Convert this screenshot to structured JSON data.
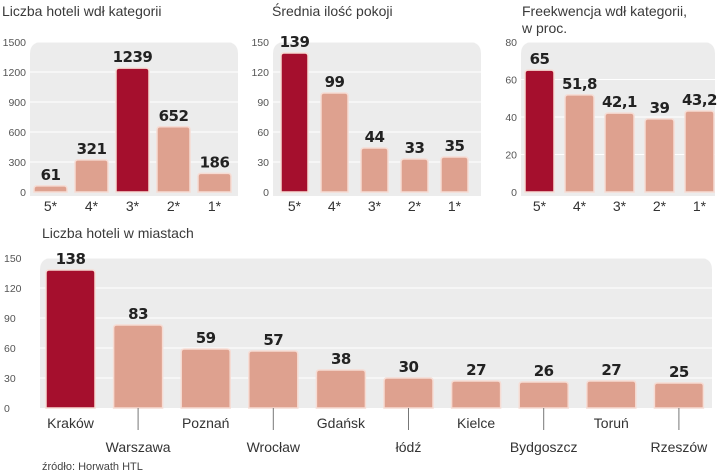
{
  "chart_data": [
    {
      "type": "bar",
      "title": "Liczba hoteli wdł kategorii",
      "categories": [
        "5*",
        "4*",
        "3*",
        "2*",
        "1*"
      ],
      "values": [
        61,
        321,
        1239,
        652,
        186
      ],
      "value_labels": [
        "61",
        "321",
        "1239",
        "652",
        "186"
      ],
      "yticks": [
        "0",
        "300",
        "600",
        "900",
        "1200",
        "1500"
      ],
      "ylim": [
        0,
        1500
      ],
      "highlight_index": 2
    },
    {
      "type": "bar",
      "title": "Średnia ilość pokoji",
      "categories": [
        "5*",
        "4*",
        "3*",
        "2*",
        "1*"
      ],
      "values": [
        139,
        99,
        44,
        33,
        35
      ],
      "value_labels": [
        "139",
        "99",
        "44",
        "33",
        "35"
      ],
      "yticks": [
        "0",
        "30",
        "60",
        "90",
        "120",
        "150"
      ],
      "ylim": [
        0,
        150
      ],
      "highlight_index": 0
    },
    {
      "type": "bar",
      "title_lines": [
        "Freekwencja wdł kategorii,",
        "w proc."
      ],
      "categories": [
        "5*",
        "4*",
        "3*",
        "2*",
        "1*"
      ],
      "values": [
        65,
        51.8,
        42.1,
        39,
        43.2
      ],
      "value_labels": [
        "65",
        "51,8",
        "42,1",
        "39",
        "43,2"
      ],
      "yticks": [
        "0",
        "20",
        "40",
        "60",
        "80"
      ],
      "ylim": [
        0,
        80
      ],
      "highlight_index": 0
    },
    {
      "type": "bar",
      "title": "Liczba hoteli w miastach",
      "categories": [
        "Kraków",
        "Warszawa",
        "Poznań",
        "Wrocław",
        "Gdańsk",
        "łódź",
        "Kielce",
        "Bydgoszcz",
        "Toruń",
        "Rzeszów"
      ],
      "values": [
        138,
        83,
        59,
        57,
        38,
        30,
        27,
        26,
        27,
        25
      ],
      "value_labels": [
        "138",
        "83",
        "59",
        "57",
        "38",
        "30",
        "27",
        "26",
        "27",
        "25"
      ],
      "yticks": [
        "0",
        "30",
        "60",
        "90",
        "120",
        "150"
      ],
      "ylim": [
        0,
        150
      ],
      "highlight_index": 0
    }
  ],
  "source": "źródło: Horwath HTL",
  "colors": {
    "highlight": "#a50f2d",
    "bar": "#dea18f",
    "bar_edge": "#f6dcd4",
    "panel": "#ececec",
    "grid": "#ffffff"
  }
}
